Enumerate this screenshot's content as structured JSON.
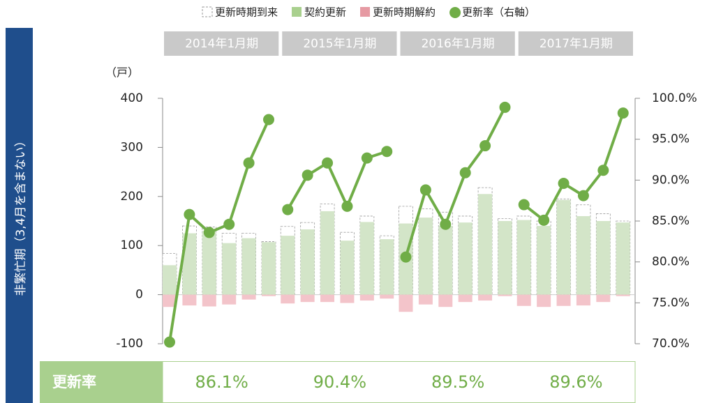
{
  "chart_data": {
    "type": "bar_line",
    "side_label": "非繁忙期（3,4月を含まない）",
    "ylabel": "（戸）",
    "table_header": "更新率",
    "series": [
      {
        "name": "更新時期到来",
        "color": "#9a9a9a"
      },
      {
        "name": "契約更新",
        "color": "#d3e5c8"
      },
      {
        "name": "更新時期解約",
        "color": "#f3c4ca"
      },
      {
        "name": "更新率（右軸）",
        "color": "#70ad47",
        "axis": "y2"
      }
    ],
    "periods": [
      {
        "label": "2014年1月期",
        "summary": 86.1,
        "summary_label": "86.1%",
        "arrivals": [
          84,
          140,
          138,
          125,
          125,
          108
        ],
        "renewals": [
          60,
          125,
          130,
          105,
          115,
          107
        ],
        "cancellations": [
          -25,
          -22,
          -24,
          -20,
          -10,
          -3
        ],
        "rate": [
          70.2,
          85.8,
          83.6,
          84.6,
          92.1,
          97.4
        ]
      },
      {
        "label": "2015年1月期",
        "summary": 90.4,
        "summary_label": "90.4%",
        "arrivals": [
          139,
          147,
          185,
          127,
          160,
          120
        ],
        "renewals": [
          120,
          133,
          170,
          110,
          148,
          113
        ],
        "cancellations": [
          -18,
          -15,
          -15,
          -17,
          -12,
          -8
        ],
        "rate": [
          86.4,
          90.6,
          92.1,
          86.8,
          92.7,
          93.5
        ]
      },
      {
        "label": "2016年1月期",
        "summary": 89.5,
        "summary_label": "89.5%",
        "arrivals": [
          180,
          175,
          168,
          160,
          218,
          155
        ],
        "renewals": [
          145,
          157,
          140,
          147,
          205,
          150
        ],
        "cancellations": [
          -35,
          -20,
          -25,
          -15,
          -12,
          -3
        ],
        "rate": [
          80.6,
          88.8,
          84.6,
          90.9,
          94.2,
          98.9
        ]
      },
      {
        "label": "2017年1月期",
        "summary": 89.6,
        "summary_label": "89.6%",
        "arrivals": [
          160,
          150,
          195,
          183,
          165,
          150
        ],
        "renewals": [
          152,
          140,
          193,
          160,
          150,
          147
        ],
        "cancellations": [
          -23,
          -25,
          -23,
          -22,
          -15,
          -3
        ],
        "rate": [
          87.0,
          85.1,
          89.6,
          88.1,
          91.2,
          98.2
        ]
      }
    ],
    "ylim": [
      -100,
      400
    ],
    "yticks": [
      -100,
      0,
      100,
      200,
      300,
      400
    ],
    "y2lim": [
      70,
      100
    ],
    "y2ticks": [
      {
        "value": 70,
        "label": "70.0%"
      },
      {
        "value": 75,
        "label": "75.0%"
      },
      {
        "value": 80,
        "label": "80.0%"
      },
      {
        "value": 85,
        "label": "85.0%"
      },
      {
        "value": 90,
        "label": "90.0%"
      },
      {
        "value": 95,
        "label": "95.0%"
      },
      {
        "value": 100,
        "label": "100.0%"
      }
    ]
  }
}
